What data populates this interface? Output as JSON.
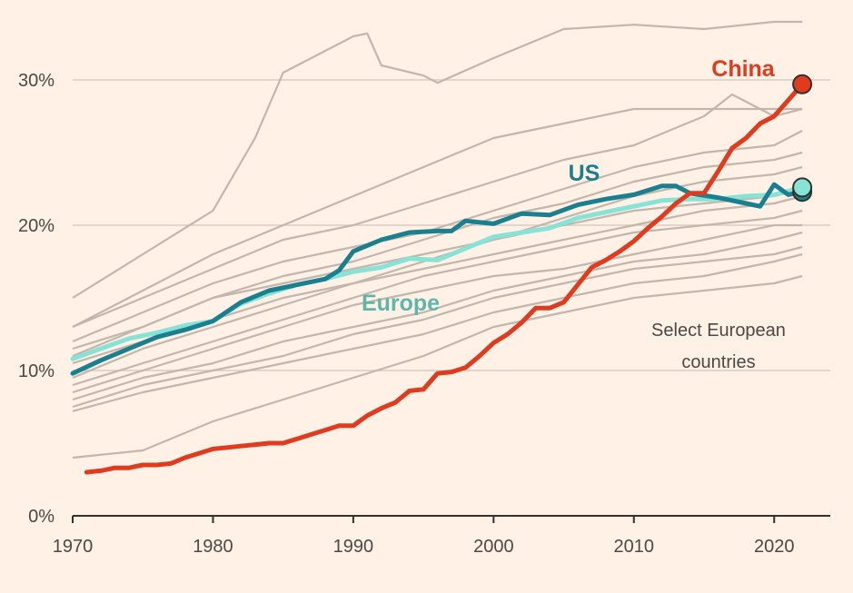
{
  "chart_data": {
    "type": "line",
    "title": "",
    "xlabel": "",
    "ylabel": "",
    "xlim": [
      1970,
      2024
    ],
    "ylim": [
      0,
      35
    ],
    "x_ticks": [
      1970,
      1980,
      1990,
      2000,
      2010,
      2020
    ],
    "x_tick_labels": [
      "1970",
      "1980",
      "1990",
      "2000",
      "2010",
      "2020"
    ],
    "y_ticks": [
      0,
      10,
      20,
      30
    ],
    "y_tick_labels": [
      "0%",
      "10%",
      "20%",
      "30%"
    ],
    "annotation": [
      "Select European",
      "countries"
    ],
    "colors": {
      "background": "#fff1e5",
      "grid": "#d9ccc1",
      "axis": "#33302e",
      "europe_lines": "#c2b6ad"
    },
    "series": [
      {
        "name": "China",
        "label": "China",
        "color": "#e03b1f",
        "end_marker": true,
        "x": [
          1971,
          1972,
          1973,
          1974,
          1975,
          1976,
          1977,
          1978,
          1979,
          1980,
          1981,
          1982,
          1983,
          1984,
          1985,
          1986,
          1987,
          1988,
          1989,
          1990,
          1991,
          1992,
          1993,
          1994,
          1995,
          1996,
          1997,
          1998,
          1999,
          2000,
          2001,
          2002,
          2003,
          2004,
          2005,
          2006,
          2007,
          2008,
          2009,
          2010,
          2011,
          2012,
          2013,
          2014,
          2015,
          2016,
          2017,
          2018,
          2019,
          2020,
          2021,
          2022
        ],
        "y": [
          3.0,
          3.1,
          3.3,
          3.3,
          3.5,
          3.5,
          3.6,
          4.0,
          4.3,
          4.6,
          4.7,
          4.8,
          4.9,
          5.0,
          5.0,
          5.3,
          5.6,
          5.9,
          6.2,
          6.2,
          6.9,
          7.4,
          7.8,
          8.6,
          8.7,
          9.8,
          9.9,
          10.2,
          11.0,
          11.9,
          12.5,
          13.3,
          14.3,
          14.3,
          14.7,
          15.9,
          17.1,
          17.6,
          18.2,
          18.9,
          19.8,
          20.6,
          21.5,
          22.2,
          22.2,
          23.7,
          25.3,
          26.0,
          27.0,
          27.5,
          28.6,
          29.7
        ]
      },
      {
        "name": "US",
        "label": "US",
        "color": "#1a7f8e",
        "end_marker": true,
        "x": [
          1970,
          1972,
          1974,
          1976,
          1978,
          1980,
          1982,
          1984,
          1986,
          1988,
          1989,
          1990,
          1992,
          1994,
          1996,
          1997,
          1998,
          2000,
          2002,
          2004,
          2006,
          2008,
          2010,
          2012,
          2013,
          2014,
          2016,
          2018,
          2019,
          2020,
          2021,
          2022
        ],
        "y": [
          9.8,
          10.7,
          11.5,
          12.3,
          12.8,
          13.4,
          14.7,
          15.5,
          15.9,
          16.3,
          16.9,
          18.2,
          19.0,
          19.5,
          19.6,
          19.6,
          20.3,
          20.1,
          20.8,
          20.7,
          21.4,
          21.8,
          22.1,
          22.7,
          22.7,
          22.2,
          21.9,
          21.5,
          21.3,
          22.8,
          22.1,
          22.3
        ]
      },
      {
        "name": "Europe",
        "label": "Europe",
        "color": "#86e3d6",
        "end_marker": true,
        "x": [
          1970,
          1972,
          1974,
          1976,
          1978,
          1980,
          1982,
          1984,
          1986,
          1988,
          1990,
          1992,
          1994,
          1996,
          1998,
          2000,
          2002,
          2004,
          2006,
          2008,
          2010,
          2012,
          2014,
          2016,
          2018,
          2020,
          2022
        ],
        "y": [
          10.8,
          11.5,
          12.2,
          12.6,
          13.1,
          13.4,
          14.6,
          15.3,
          15.9,
          16.3,
          16.8,
          17.1,
          17.7,
          17.6,
          18.4,
          19.2,
          19.5,
          19.8,
          20.5,
          20.9,
          21.3,
          21.7,
          21.8,
          21.8,
          22.0,
          22.1,
          22.6
        ]
      }
    ],
    "europe_countries": [
      {
        "x": [
          1970,
          1975,
          1980,
          1983,
          1985,
          1987,
          1990,
          1991,
          1992,
          1995,
          1996,
          2000,
          2005,
          2010,
          2015,
          2020,
          2022
        ],
        "y": [
          15.0,
          18.0,
          21.0,
          26.0,
          30.5,
          31.5,
          33.0,
          33.2,
          31.0,
          30.3,
          29.8,
          31.5,
          33.5,
          33.8,
          33.5,
          34.0,
          34.0
        ]
      },
      {
        "x": [
          1970,
          1975,
          1980,
          1985,
          1990,
          1995,
          2000,
          2005,
          2010,
          2015,
          2020,
          2022
        ],
        "y": [
          13.0,
          15.5,
          18.0,
          20.0,
          22.0,
          24.0,
          26.0,
          27.0,
          28.0,
          28.0,
          28.0,
          28.0
        ]
      },
      {
        "x": [
          1970,
          1975,
          1980,
          1985,
          1990,
          1995,
          2000,
          2005,
          2010,
          2015,
          2017,
          2020,
          2022
        ],
        "y": [
          13.0,
          15.0,
          17.0,
          19.0,
          20.0,
          21.5,
          23.0,
          24.5,
          25.5,
          27.5,
          29.0,
          27.5,
          28.0
        ]
      },
      {
        "x": [
          1970,
          1975,
          1980,
          1985,
          1990,
          1995,
          2000,
          2005,
          2010,
          2015,
          2020,
          2022
        ],
        "y": [
          12.0,
          14.0,
          16.0,
          17.5,
          18.5,
          19.5,
          21.0,
          22.5,
          24.0,
          25.0,
          25.5,
          26.5
        ]
      },
      {
        "x": [
          1970,
          1975,
          1980,
          1985,
          1990,
          1995,
          2000,
          2005,
          2010,
          2015,
          2020,
          2022
        ],
        "y": [
          11.5,
          13.0,
          15.0,
          16.5,
          17.5,
          19.0,
          20.5,
          21.5,
          23.0,
          24.0,
          24.5,
          25.0
        ]
      },
      {
        "x": [
          1970,
          1975,
          1980,
          1985,
          1990,
          1995,
          2000,
          2005,
          2010,
          2015,
          2020,
          2022
        ],
        "y": [
          10.5,
          12.0,
          13.5,
          15.0,
          16.0,
          17.5,
          19.0,
          20.5,
          22.0,
          23.0,
          23.5,
          24.0
        ]
      },
      {
        "x": [
          1970,
          1975,
          1980,
          1985,
          1990,
          1995,
          2000,
          2005,
          2010,
          2015,
          2020,
          2022
        ],
        "y": [
          9.5,
          11.5,
          13.0,
          14.5,
          16.0,
          17.0,
          18.0,
          19.0,
          20.0,
          21.0,
          21.5,
          22.0
        ]
      },
      {
        "x": [
          1970,
          1975,
          1980,
          1985,
          1990,
          1995,
          2000,
          2005,
          2010,
          2015,
          2020,
          2022
        ],
        "y": [
          9.0,
          10.5,
          12.0,
          13.5,
          15.0,
          16.5,
          17.5,
          18.5,
          19.5,
          20.0,
          20.5,
          21.0
        ]
      },
      {
        "x": [
          1970,
          1975,
          1980,
          1985,
          1990,
          1995,
          2000,
          2005,
          2010,
          2015,
          2020,
          2022
        ],
        "y": [
          8.5,
          10.0,
          11.5,
          13.0,
          14.5,
          15.5,
          16.5,
          17.0,
          18.0,
          19.0,
          20.0,
          20.0
        ]
      },
      {
        "x": [
          1970,
          1975,
          1980,
          1985,
          1990,
          1995,
          2000,
          2005,
          2010,
          2015,
          2020,
          2022
        ],
        "y": [
          8.0,
          9.5,
          10.5,
          12.0,
          13.0,
          14.0,
          15.5,
          16.5,
          17.5,
          18.0,
          19.0,
          19.5
        ]
      },
      {
        "x": [
          1970,
          1975,
          1980,
          1985,
          1990,
          1995,
          2000,
          2005,
          2010,
          2015,
          2020,
          2022
        ],
        "y": [
          7.5,
          9.0,
          10.0,
          11.0,
          12.5,
          13.5,
          15.0,
          16.0,
          17.0,
          17.5,
          18.0,
          18.5
        ]
      },
      {
        "x": [
          1970,
          1975,
          1980,
          1985,
          1990,
          1995,
          2000,
          2005,
          2010,
          2015,
          2020,
          2022
        ],
        "y": [
          7.2,
          8.5,
          9.5,
          10.5,
          11.5,
          12.5,
          14.0,
          15.0,
          16.0,
          16.5,
          17.5,
          18.0
        ]
      },
      {
        "x": [
          1970,
          1975,
          1980,
          1985,
          1990,
          1995,
          2000,
          2005,
          2010,
          2015,
          2020,
          2022
        ],
        "y": [
          4.0,
          4.5,
          6.5,
          8.0,
          9.5,
          11.0,
          13.0,
          14.0,
          15.0,
          15.5,
          16.0,
          16.5
        ]
      },
      {
        "x": [
          1970,
          1975,
          1980,
          1985,
          1990,
          1995,
          2000,
          2005,
          2010,
          2015,
          2020,
          2022
        ],
        "y": [
          11.0,
          13.0,
          15.0,
          16.0,
          17.0,
          18.0,
          19.0,
          20.0,
          21.0,
          21.5,
          22.0,
          22.5
        ]
      }
    ]
  }
}
